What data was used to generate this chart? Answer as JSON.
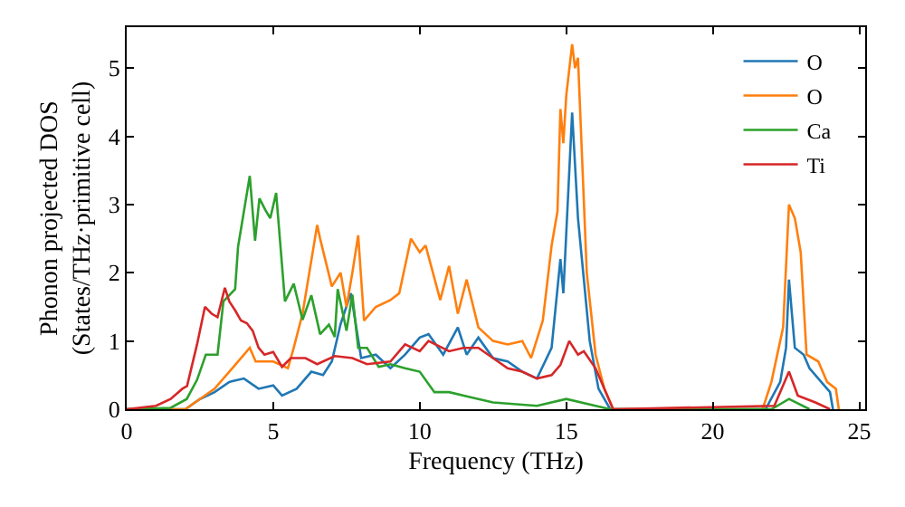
{
  "chart_data": {
    "type": "line",
    "xlabel": "Frequency (THz)",
    "ylabel": "Phonon projected DOS\n(States/THz·primitive cell)",
    "xlim": [
      0,
      25.2
    ],
    "ylim": [
      0,
      5.6
    ],
    "xticks": [
      0,
      5,
      10,
      15,
      20,
      25
    ],
    "yticks": [
      0,
      1,
      2,
      3,
      4,
      5
    ],
    "legend": "top right",
    "marker": "none",
    "line_style": "solid",
    "series": [
      {
        "name": "O",
        "color": "#1f77b4",
        "x": [
          0,
          2,
          2.5,
          3,
          3.5,
          4,
          4.5,
          5,
          5.3,
          5.8,
          6.3,
          6.7,
          7,
          7.3,
          7.65,
          8,
          8.5,
          9,
          9.5,
          10,
          10.3,
          10.8,
          11.3,
          11.6,
          12,
          12.5,
          13,
          13.5,
          14,
          14.5,
          14.8,
          14.9,
          15.2,
          15.4,
          15.8,
          16.1,
          16.5,
          21.8,
          22.3,
          22.5,
          22.6,
          22.8,
          23.1,
          23.3,
          23.7,
          24,
          24.1
        ],
        "values": [
          0,
          0,
          0.15,
          0.25,
          0.4,
          0.45,
          0.3,
          0.35,
          0.2,
          0.3,
          0.55,
          0.5,
          0.7,
          1.25,
          1.7,
          0.75,
          0.8,
          0.6,
          0.8,
          1.05,
          1.1,
          0.8,
          1.2,
          0.8,
          1.05,
          0.75,
          0.7,
          0.55,
          0.45,
          0.9,
          2.2,
          1.7,
          4.35,
          2.8,
          1.0,
          0.3,
          0,
          0,
          0.4,
          0.9,
          1.9,
          0.9,
          0.8,
          0.6,
          0.4,
          0.25,
          0
        ]
      },
      {
        "name": "O",
        "color": "#ff7f0e",
        "x": [
          0,
          2,
          2.5,
          3,
          3.6,
          4.2,
          4.4,
          5,
          5.5,
          5.7,
          6,
          6.5,
          6.6,
          7,
          7.3,
          7.5,
          7.7,
          7.9,
          8.1,
          8.5,
          9,
          9.3,
          9.7,
          10,
          10.2,
          10.7,
          11,
          11.3,
          11.6,
          12,
          12.5,
          13,
          13.5,
          13.8,
          14.2,
          14.5,
          14.7,
          14.8,
          14.9,
          15,
          15.2,
          15.3,
          15.4,
          15.7,
          16,
          16.3,
          16.6,
          21.7,
          22,
          22.4,
          22.6,
          22.8,
          23,
          23.2,
          23.6,
          23.9,
          24.2,
          24.3
        ],
        "values": [
          0,
          0,
          0.15,
          0.3,
          0.6,
          0.9,
          0.7,
          0.7,
          0.6,
          0.9,
          1.4,
          2.7,
          2.5,
          1.8,
          2.0,
          1.5,
          2.0,
          2.55,
          1.3,
          1.5,
          1.6,
          1.7,
          2.5,
          2.3,
          2.4,
          1.6,
          2.1,
          1.4,
          1.9,
          1.2,
          1.0,
          0.95,
          1.0,
          0.75,
          1.3,
          2.4,
          2.9,
          4.4,
          3.9,
          4.6,
          5.35,
          5.0,
          5.15,
          2.0,
          0.8,
          0.3,
          0,
          0,
          0.4,
          1.2,
          3.0,
          2.8,
          2.3,
          0.8,
          0.7,
          0.4,
          0.3,
          0
        ]
      },
      {
        "name": "Ca",
        "color": "#2ca02c",
        "x": [
          0,
          1.5,
          2.05,
          2.4,
          2.7,
          3.1,
          3.3,
          3.7,
          3.8,
          4.2,
          4.38,
          4.53,
          4.73,
          4.9,
          5.1,
          5.4,
          5.7,
          6,
          6.3,
          6.6,
          6.9,
          7.1,
          7.2,
          7.5,
          7.7,
          7.9,
          8.2,
          8.6,
          9,
          9.5,
          10,
          10.5,
          11,
          11.5,
          12.5,
          14,
          15,
          16,
          16.5,
          22,
          22.6,
          23.3
        ],
        "values": [
          0,
          0.02,
          0.15,
          0.43,
          0.8,
          0.8,
          1.58,
          1.76,
          2.38,
          3.42,
          2.47,
          3.09,
          2.92,
          2.8,
          3.17,
          1.58,
          1.84,
          1.31,
          1.67,
          1.1,
          1.24,
          1.06,
          1.76,
          1.15,
          1.68,
          0.9,
          0.9,
          0.62,
          0.66,
          0.6,
          0.55,
          0.25,
          0.25,
          0.2,
          0.1,
          0.05,
          0.15,
          0.05,
          0,
          0,
          0.15,
          0
        ]
      },
      {
        "name": "Ti",
        "color": "#d62728",
        "x": [
          0,
          1,
          1.5,
          1.9,
          2.06,
          2.4,
          2.67,
          2.9,
          3.1,
          3.35,
          3.5,
          3.7,
          3.9,
          4.1,
          4.3,
          4.5,
          4.7,
          5,
          5.3,
          5.6,
          6.1,
          6.5,
          7.1,
          7.7,
          8.2,
          9,
          9.5,
          10,
          10.3,
          11,
          11.5,
          12,
          12.5,
          13,
          13.5,
          14,
          14.5,
          14.8,
          15.1,
          15.4,
          15.6,
          16,
          16.3,
          16.6,
          22.1,
          22.6,
          22.9,
          23.5,
          24
        ],
        "values": [
          0,
          0.05,
          0.15,
          0.3,
          0.34,
          0.95,
          1.5,
          1.4,
          1.35,
          1.78,
          1.58,
          1.45,
          1.3,
          1.26,
          1.15,
          0.9,
          0.8,
          0.84,
          0.62,
          0.75,
          0.75,
          0.66,
          0.78,
          0.75,
          0.66,
          0.7,
          0.95,
          0.85,
          1.0,
          0.85,
          0.9,
          0.9,
          0.75,
          0.6,
          0.55,
          0.45,
          0.5,
          0.65,
          1.0,
          0.8,
          0.85,
          0.6,
          0.3,
          0,
          0.05,
          0.55,
          0.2,
          0.1,
          0
        ]
      }
    ]
  }
}
